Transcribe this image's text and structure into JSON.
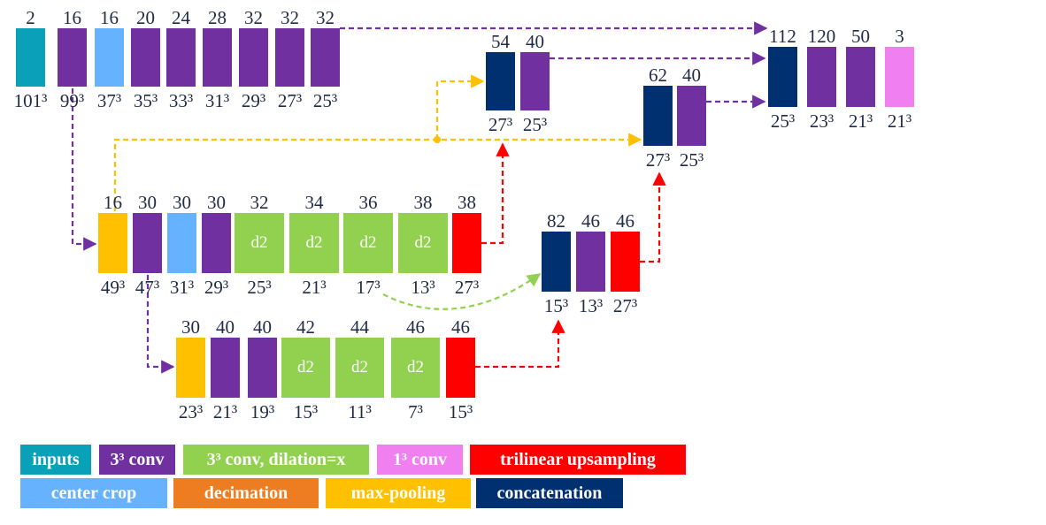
{
  "colors": {
    "inputs": "#0aa0b8",
    "conv": "#7030a0",
    "dilated": "#92d050",
    "conv1": "#f080f0",
    "upsample": "#ff0000",
    "crop": "#66b2ff",
    "decimation": "#ed7d20",
    "maxpool": "#ffc000",
    "concat": "#003070",
    "arrow_purple": "#7030a0",
    "arrow_yellow": "#ffc000",
    "arrow_red": "#ff0000",
    "arrow_green": "#92d050"
  },
  "blocks": [
    {
      "id": "r1-1",
      "type": "inputs",
      "top": "2",
      "bottom": "101³"
    },
    {
      "id": "r1-2",
      "type": "conv",
      "top": "16",
      "bottom": "99³"
    },
    {
      "id": "r1-3",
      "type": "crop",
      "top": "16",
      "bottom": "37³"
    },
    {
      "id": "r1-4",
      "type": "conv",
      "top": "20",
      "bottom": "35³"
    },
    {
      "id": "r1-5",
      "type": "conv",
      "top": "24",
      "bottom": "33³"
    },
    {
      "id": "r1-6",
      "type": "conv",
      "top": "28",
      "bottom": "31³"
    },
    {
      "id": "r1-7",
      "type": "conv",
      "top": "32",
      "bottom": "29³"
    },
    {
      "id": "r1-8",
      "type": "conv",
      "top": "32",
      "bottom": "27³"
    },
    {
      "id": "r1-9",
      "type": "conv",
      "top": "32",
      "bottom": "25³"
    },
    {
      "id": "c1-1",
      "type": "concat",
      "top": "54",
      "bottom": "27³"
    },
    {
      "id": "c1-2",
      "type": "conv",
      "top": "40",
      "bottom": "25³"
    },
    {
      "id": "c2-1",
      "type": "concat",
      "top": "62",
      "bottom": "27³"
    },
    {
      "id": "c2-2",
      "type": "conv",
      "top": "40",
      "bottom": "25³"
    },
    {
      "id": "o-1",
      "type": "concat",
      "top": "112",
      "bottom": "25³"
    },
    {
      "id": "o-2",
      "type": "conv",
      "top": "120",
      "bottom": "23³"
    },
    {
      "id": "o-3",
      "type": "conv",
      "top": "50",
      "bottom": "21³"
    },
    {
      "id": "o-4",
      "type": "conv1",
      "top": "3",
      "bottom": "21³"
    },
    {
      "id": "r2-1",
      "type": "maxpool",
      "top": "16",
      "bottom": "49³"
    },
    {
      "id": "r2-2",
      "type": "conv",
      "top": "30",
      "bottom": "47³"
    },
    {
      "id": "r2-3",
      "type": "crop",
      "top": "30",
      "bottom": "31³"
    },
    {
      "id": "r2-4",
      "type": "conv",
      "top": "30",
      "bottom": "29³"
    },
    {
      "id": "r2-5",
      "type": "dilated",
      "top": "32",
      "bottom": "25³",
      "inner": "d2"
    },
    {
      "id": "r2-6",
      "type": "dilated",
      "top": "34",
      "bottom": "21³",
      "inner": "d2"
    },
    {
      "id": "r2-7",
      "type": "dilated",
      "top": "36",
      "bottom": "17³",
      "inner": "d2"
    },
    {
      "id": "r2-8",
      "type": "dilated",
      "top": "38",
      "bottom": "13³",
      "inner": "d2"
    },
    {
      "id": "r2-9",
      "type": "upsample",
      "top": "38",
      "bottom": "27³"
    },
    {
      "id": "c3-1",
      "type": "concat",
      "top": "82",
      "bottom": "15³"
    },
    {
      "id": "c3-2",
      "type": "conv",
      "top": "46",
      "bottom": "13³"
    },
    {
      "id": "c3-3",
      "type": "upsample",
      "top": "46",
      "bottom": "27³"
    },
    {
      "id": "r3-1",
      "type": "maxpool",
      "top": "30",
      "bottom": "23³"
    },
    {
      "id": "r3-2",
      "type": "conv",
      "top": "40",
      "bottom": "21³"
    },
    {
      "id": "r3-3",
      "type": "conv",
      "top": "40",
      "bottom": "19³"
    },
    {
      "id": "r3-4",
      "type": "dilated",
      "top": "42",
      "bottom": "15³",
      "inner": "d2"
    },
    {
      "id": "r3-5",
      "type": "dilated",
      "top": "44",
      "bottom": "11³",
      "inner": "d2"
    },
    {
      "id": "r3-6",
      "type": "dilated",
      "top": "46",
      "bottom": "7³",
      "inner": "d2"
    },
    {
      "id": "r3-7",
      "type": "upsample",
      "top": "46",
      "bottom": "15³"
    }
  ],
  "legend": [
    {
      "id": "inputs",
      "label": "inputs",
      "type": "inputs"
    },
    {
      "id": "conv",
      "label": "3³ conv",
      "type": "conv"
    },
    {
      "id": "dilated",
      "label": "3³ conv, dilation=x",
      "type": "dilated"
    },
    {
      "id": "conv1",
      "label": "1³ conv",
      "type": "conv1"
    },
    {
      "id": "upsample",
      "label": "trilinear upsampling",
      "type": "upsample"
    },
    {
      "id": "crop",
      "label": "center crop",
      "type": "crop"
    },
    {
      "id": "decimation",
      "label": "decimation",
      "type": "decimation"
    },
    {
      "id": "maxpool",
      "label": "max-pooling",
      "type": "maxpool"
    },
    {
      "id": "concat",
      "label": "concatenation",
      "type": "concat"
    }
  ]
}
